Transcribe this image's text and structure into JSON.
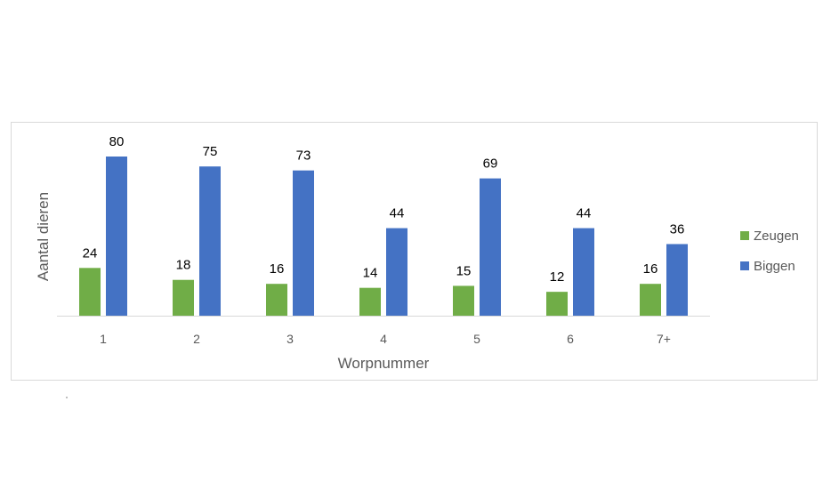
{
  "chart_data": {
    "type": "bar",
    "categories": [
      "1",
      "2",
      "3",
      "4",
      "5",
      "6",
      "7+"
    ],
    "series": [
      {
        "name": "Zeugen",
        "color": "#70ad47",
        "values": [
          24,
          18,
          16,
          14,
          15,
          12,
          16
        ]
      },
      {
        "name": "Biggen",
        "color": "#4472c4",
        "values": [
          80,
          75,
          73,
          44,
          69,
          44,
          36
        ]
      }
    ],
    "xlabel": "Worpnummer",
    "ylabel": "Aantal dieren",
    "ylim": [
      0,
      80
    ],
    "grid": false,
    "legend": "right",
    "data_labels": true
  }
}
